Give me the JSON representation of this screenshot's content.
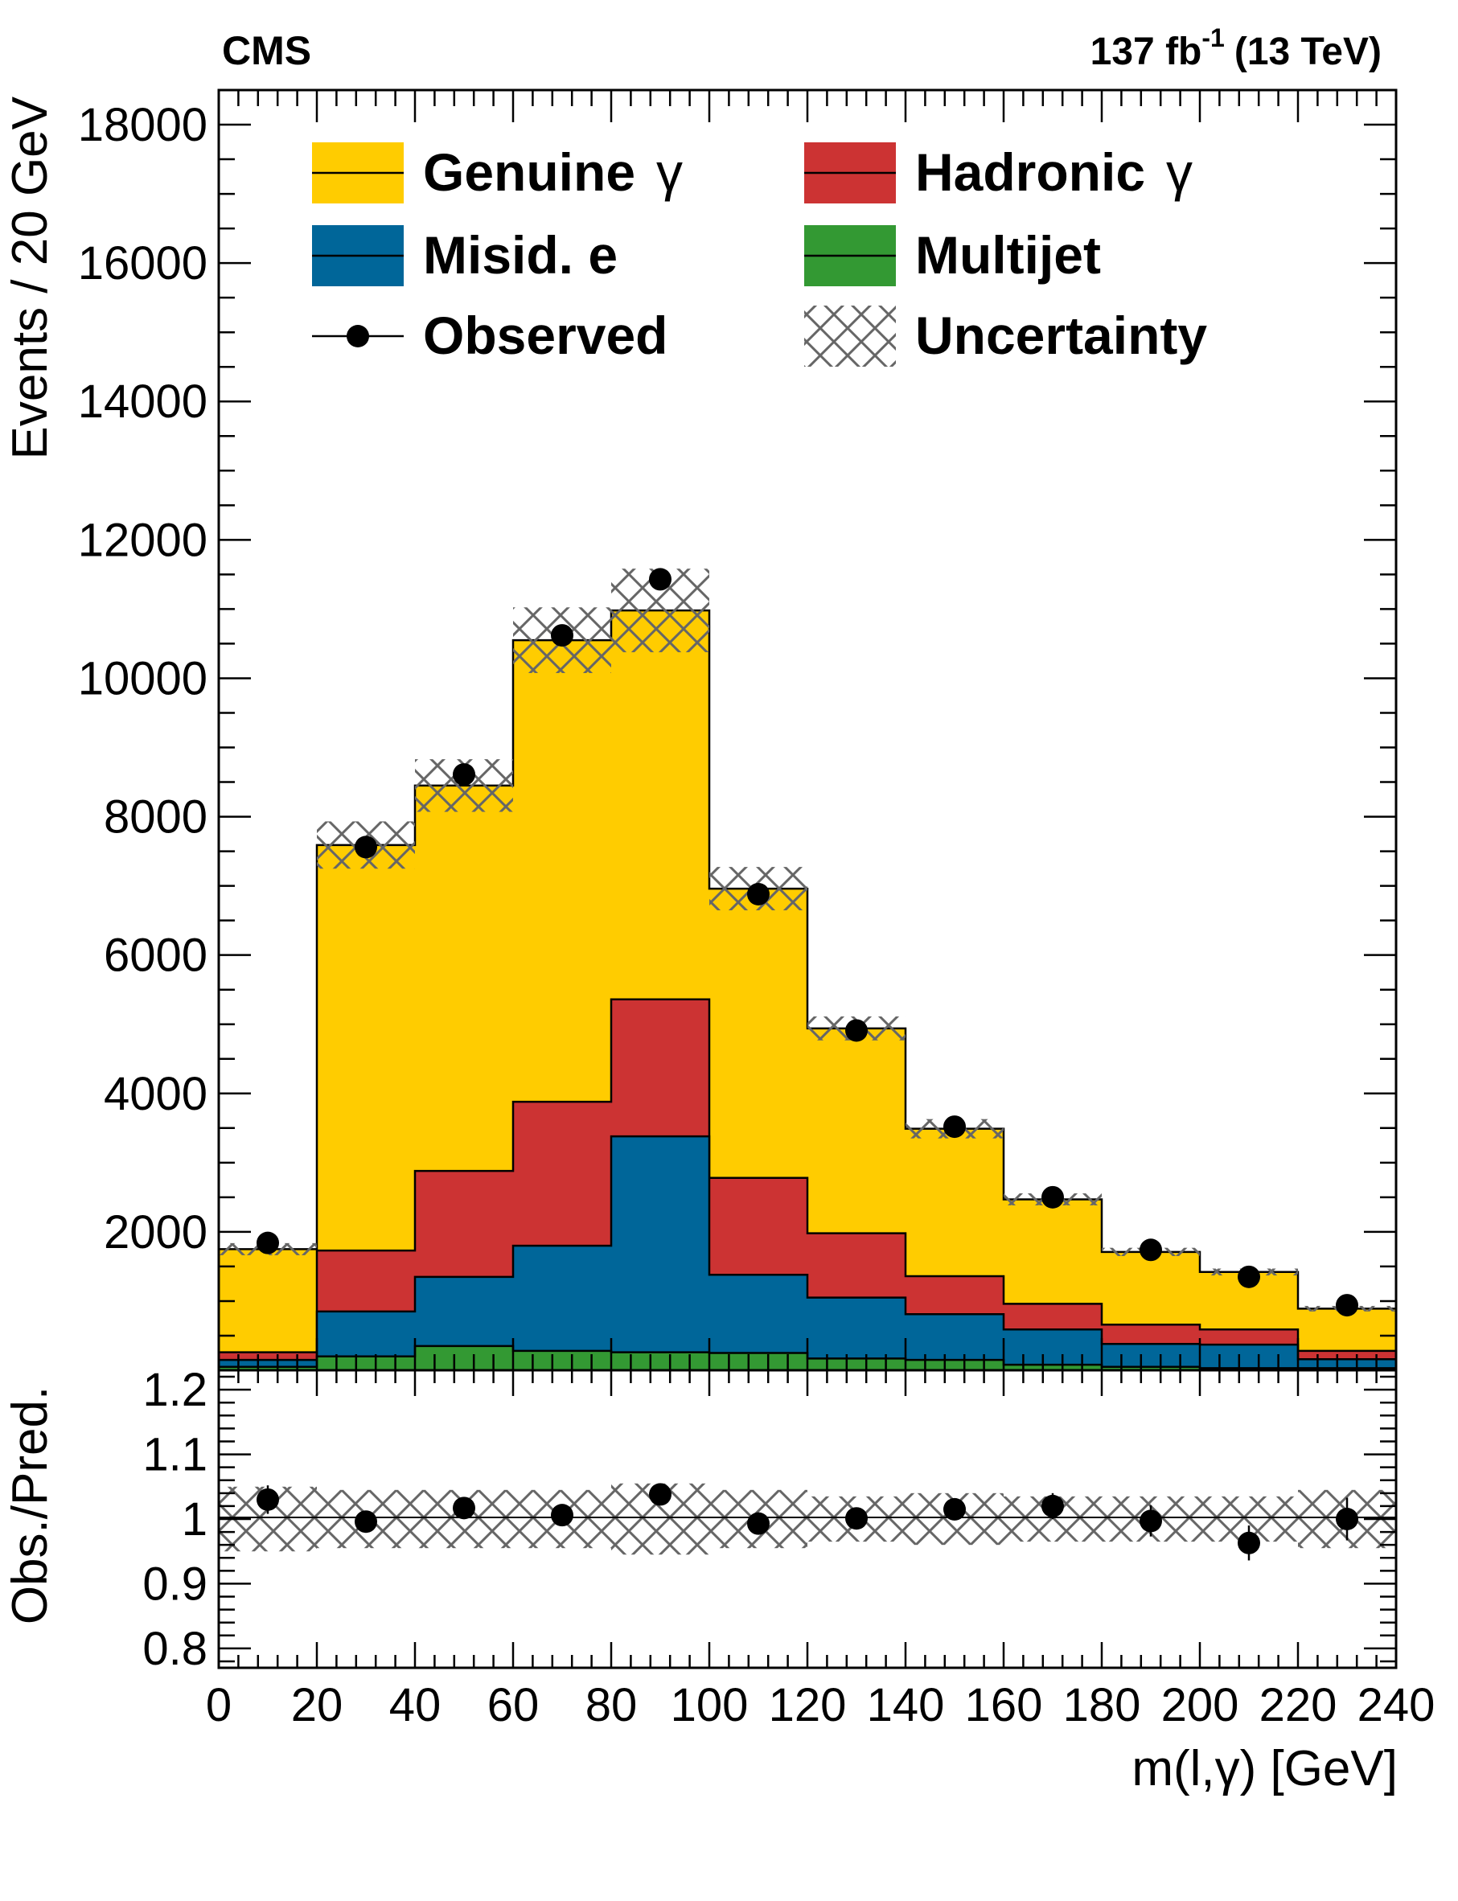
{
  "header": {
    "experiment": "CMS",
    "lumi": "137 fb",
    "lumi_exp": "-1",
    "energy": "(13 TeV)"
  },
  "legend": [
    {
      "label": "Genuine",
      "greek": "γ",
      "kind": "fill",
      "color": "#FFCC00"
    },
    {
      "label": "Hadronic",
      "greek": "γ",
      "kind": "fill",
      "color": "#CC3333"
    },
    {
      "label": "Misid. e",
      "greek": "",
      "kind": "fill",
      "color": "#006699"
    },
    {
      "label": "Multijet",
      "greek": "",
      "kind": "fill",
      "color": "#339933"
    },
    {
      "label": "Observed",
      "greek": "",
      "kind": "marker",
      "color": "#000000"
    },
    {
      "label": "Uncertainty",
      "greek": "",
      "kind": "hatch",
      "color": "#666666"
    }
  ],
  "chart_data": [
    {
      "type": "bar",
      "stacked": true,
      "title": "",
      "xlabel": "",
      "ylabel": "Events / 20 GeV",
      "xlim": [
        0,
        240
      ],
      "ylim": [
        0,
        18500
      ],
      "bin_edges": [
        0,
        20,
        40,
        60,
        80,
        100,
        120,
        140,
        160,
        180,
        200,
        220,
        240
      ],
      "yticks": [
        2000,
        4000,
        6000,
        8000,
        10000,
        12000,
        14000,
        16000,
        18000
      ],
      "series": [
        {
          "name": "Multijet",
          "color": "#339933",
          "values": [
            50,
            200,
            350,
            280,
            260,
            250,
            170,
            150,
            80,
            50,
            30,
            30
          ]
        },
        {
          "name": "Misid. e",
          "color": "#006699",
          "values": [
            100,
            650,
            1000,
            1520,
            3120,
            1130,
            880,
            660,
            510,
            330,
            340,
            130
          ]
        },
        {
          "name": "Hadronic γ",
          "color": "#CC3333",
          "values": [
            110,
            880,
            1530,
            2080,
            1980,
            1400,
            930,
            550,
            370,
            280,
            220,
            120
          ]
        },
        {
          "name": "Genuine γ",
          "color": "#FFCC00",
          "values": [
            1490,
            5860,
            5570,
            6670,
            5620,
            4180,
            2960,
            2130,
            1510,
            1050,
            830,
            610
          ]
        }
      ],
      "uncertainty_rel": [
        0.05,
        0.045,
        0.045,
        0.045,
        0.055,
        0.045,
        0.035,
        0.04,
        0.035,
        0.035,
        0.035,
        0.045
      ],
      "observed": {
        "name": "Observed",
        "x": [
          10,
          30,
          50,
          70,
          90,
          110,
          130,
          150,
          170,
          190,
          210,
          230
        ],
        "y": [
          1840,
          7560,
          8610,
          10620,
          11430,
          6880,
          4910,
          3520,
          2500,
          1740,
          1350,
          940
        ]
      }
    },
    {
      "type": "scatter",
      "title": "",
      "xlabel": "m(l,γ) [GeV]",
      "ylabel": "Obs./Pred.",
      "xlim": [
        0,
        240
      ],
      "ylim": [
        0.77,
        1.23
      ],
      "xticks": [
        0,
        20,
        40,
        60,
        80,
        100,
        120,
        140,
        160,
        180,
        200,
        220,
        240
      ],
      "yticks": [
        0.8,
        0.9,
        1,
        1.1,
        1.2
      ],
      "ytick_labels": [
        "0.8",
        "0.9",
        "1",
        "1.1",
        "1.2"
      ],
      "x": [
        10,
        30,
        50,
        70,
        90,
        110,
        130,
        150,
        170,
        190,
        210,
        230
      ],
      "y": [
        1.03,
        0.996,
        1.017,
        1.006,
        1.038,
        0.993,
        1.001,
        1.015,
        1.02,
        0.997,
        0.963,
        1.0
      ],
      "yerr": [
        0.022,
        0.011,
        0.011,
        0.01,
        0.01,
        0.012,
        0.014,
        0.017,
        0.02,
        0.024,
        0.027,
        0.033
      ],
      "reference_line": 1
    }
  ]
}
